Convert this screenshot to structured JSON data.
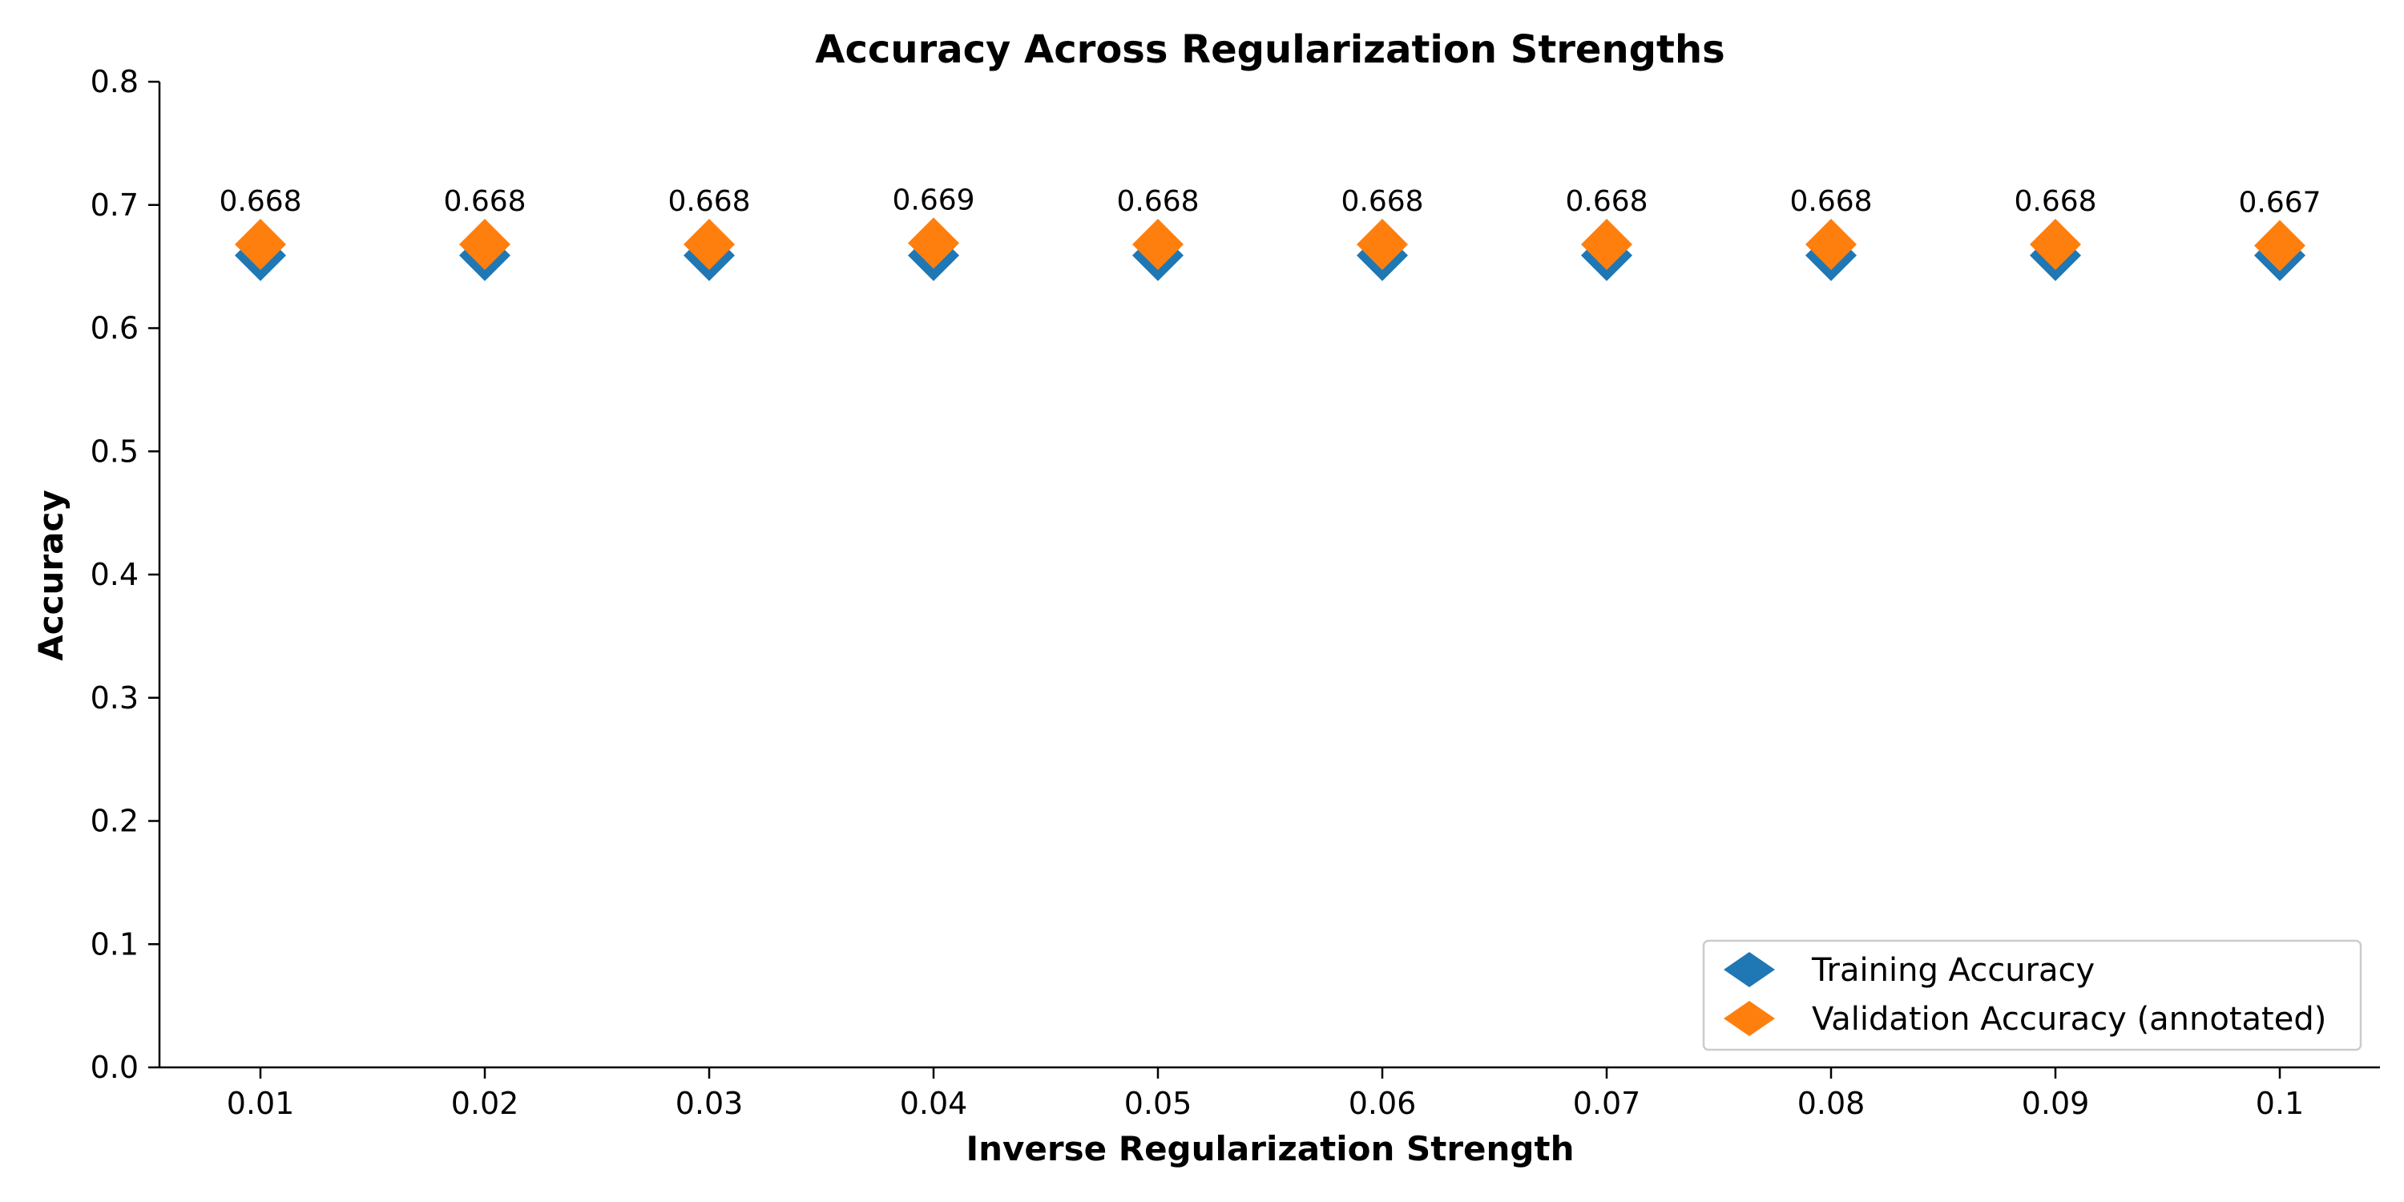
{
  "chart_data": {
    "type": "scatter",
    "title": "Accuracy Across Regularization Strengths",
    "xlabel": "Inverse Regularization Strength",
    "ylabel": "Accuracy",
    "x": [
      0.01,
      0.02,
      0.03,
      0.04,
      0.05,
      0.06,
      0.07,
      0.08,
      0.09,
      0.1
    ],
    "x_tick_labels": [
      "0.01",
      "0.02",
      "0.03",
      "0.04",
      "0.05",
      "0.06",
      "0.07",
      "0.08",
      "0.09",
      "0.1"
    ],
    "ylim": [
      0,
      0.8
    ],
    "y_ticks": [
      0.0,
      0.1,
      0.2,
      0.3,
      0.4,
      0.5,
      0.6,
      0.7,
      0.8
    ],
    "y_tick_labels": [
      "0.0",
      "0.1",
      "0.2",
      "0.3",
      "0.4",
      "0.5",
      "0.6",
      "0.7",
      "0.8"
    ],
    "grid": false,
    "legend_position": "lower-right",
    "series": [
      {
        "name": "Training Accuracy",
        "color": "#1f77b4",
        "marker": "diamond",
        "values": [
          0.659,
          0.659,
          0.659,
          0.659,
          0.659,
          0.659,
          0.659,
          0.659,
          0.659,
          0.659
        ]
      },
      {
        "name": "Validation Accuracy (annotated)",
        "color": "#ff7f0e",
        "marker": "diamond",
        "values": [
          0.668,
          0.668,
          0.668,
          0.669,
          0.668,
          0.668,
          0.668,
          0.668,
          0.668,
          0.667
        ],
        "annotations": [
          "0.668",
          "0.668",
          "0.668",
          "0.669",
          "0.668",
          "0.668",
          "0.668",
          "0.668",
          "0.668",
          "0.667"
        ]
      }
    ]
  }
}
